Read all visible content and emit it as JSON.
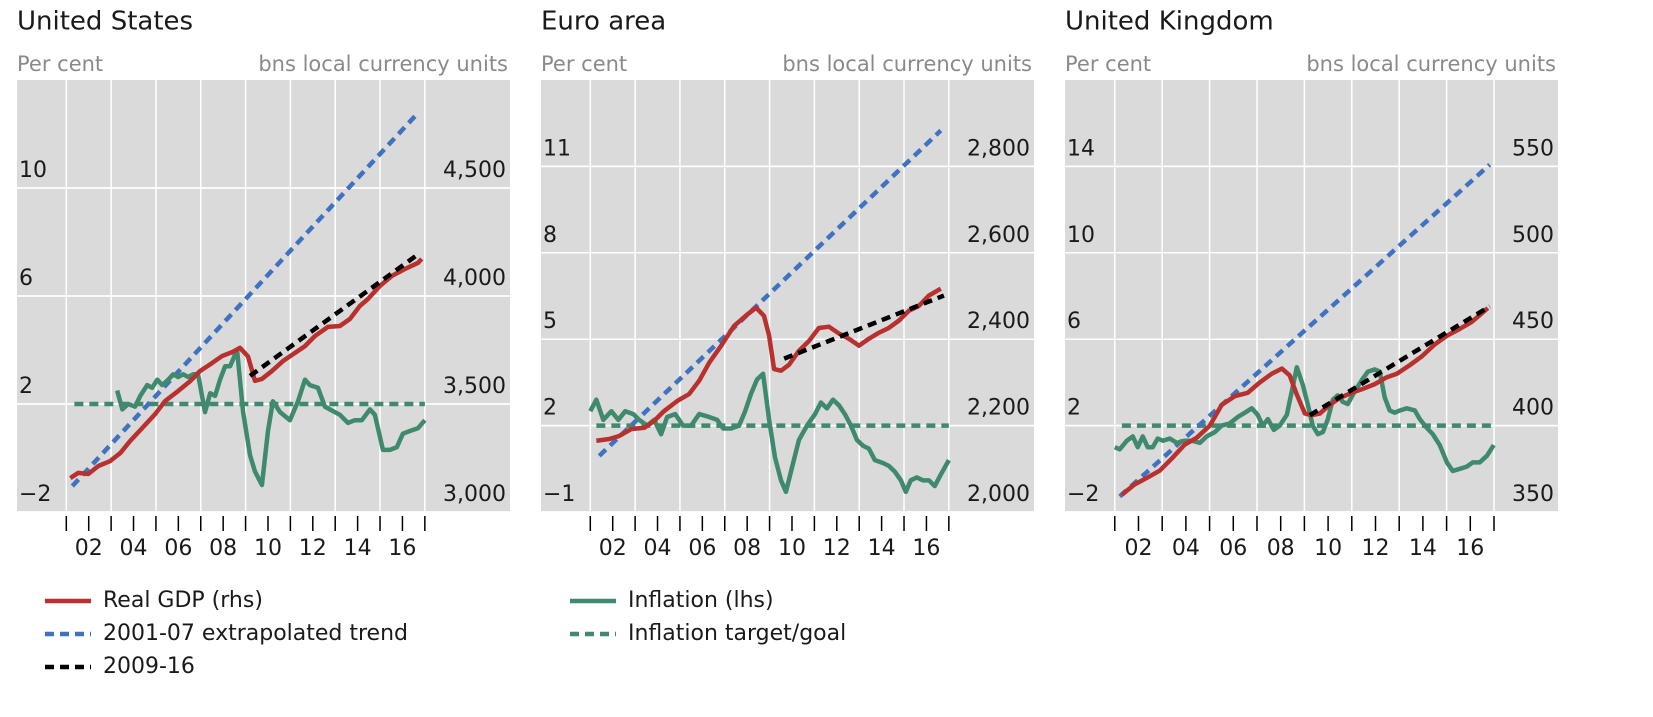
{
  "chart_data": [
    {
      "type": "line",
      "title": "United States",
      "ylabel": "Per cent",
      "y2label": "bns local currency units",
      "xlim": [
        1998.8,
        2020.8
      ],
      "xticks": [
        {
          "value": 2002,
          "label": "02"
        },
        {
          "value": 2004,
          "label": "04"
        },
        {
          "value": 2006,
          "label": "06"
        },
        {
          "value": 2008,
          "label": "08"
        },
        {
          "value": 2010,
          "label": "10"
        },
        {
          "value": 2012,
          "label": "12"
        },
        {
          "value": 2014,
          "label": "14"
        },
        {
          "value": 2016,
          "label": "16"
        }
      ],
      "xminorticks": [
        2001,
        2002,
        2003,
        2004,
        2005,
        2006,
        2007,
        2008,
        2009,
        2010,
        2011,
        2012,
        2013,
        2014,
        2015,
        2016,
        2017
      ],
      "ylim": [
        -2,
        14
      ],
      "yticks": [
        {
          "value": -2,
          "label": "−2"
        },
        2,
        6,
        10
      ],
      "y2lim": [
        3000,
        5000
      ],
      "y2ticks": [
        {
          "value": 3000,
          "label": "3,000"
        },
        {
          "value": 3500,
          "label": "3,500"
        },
        {
          "value": 4000,
          "label": "4,000"
        },
        {
          "value": 4500,
          "label": "4,500"
        }
      ],
      "grid": true,
      "series": [
        {
          "name": "Real GDP (rhs)",
          "color": "#b8312f",
          "dash": false,
          "axis": "y2",
          "x": [
            2001.18,
            2001.53,
            2001.98,
            2002.43,
            2002.96,
            2003.41,
            2003.85,
            2004.39,
            2004.97,
            2005.41,
            2005.99,
            2006.53,
            2006.97,
            2007.51,
            2007.95,
            2008.4,
            2008.75,
            2009.11,
            2009.42,
            2009.73,
            2010.18,
            2010.67,
            2011.2,
            2011.65,
            2012.1,
            2012.68,
            2013.21,
            2013.66,
            2014.1,
            2014.46,
            2014.99,
            2015.53,
            2016.11,
            2016.69,
            2016.86
          ],
          "values": [
            3157,
            3181,
            3176,
            3213,
            3236,
            3273,
            3329,
            3389,
            3454,
            3514,
            3560,
            3606,
            3653,
            3690,
            3722,
            3740,
            3760,
            3720,
            3607,
            3616,
            3653,
            3699,
            3736,
            3768,
            3815,
            3857,
            3861,
            3894,
            3954,
            3986,
            4046,
            4093,
            4125,
            4153,
            4172
          ]
        },
        {
          "name": "2001-07 extrapolated trend",
          "color": "#3f72c0",
          "dash": true,
          "axis": "y2",
          "x": [
            2001.27,
            2016.69
          ],
          "values": [
            3120,
            4847
          ]
        },
        {
          "name": "2009-16",
          "color": "#000000",
          "dash": true,
          "axis": "y2",
          "x": [
            2009.2,
            2016.78
          ],
          "values": [
            3630,
            4199
          ]
        },
        {
          "name": "Inflation (lhs)",
          "color": "#3f8a6c",
          "dash": false,
          "axis": "y",
          "x": [
            2003.27,
            2003.5,
            2003.76,
            2004.07,
            2004.3,
            2004.61,
            2004.83,
            2005.06,
            2005.28,
            2005.55,
            2005.77,
            2005.99,
            2006.21,
            2006.44,
            2006.66,
            2006.88,
            2007.19,
            2007.42,
            2007.64,
            2007.86,
            2008.09,
            2008.31,
            2008.62,
            2008.89,
            2009.2,
            2009.42,
            2009.73,
            2010.0,
            2010.22,
            2010.54,
            2010.98,
            2011.34,
            2011.65,
            2011.87,
            2012.23,
            2012.54,
            2012.76,
            2013.21,
            2013.57,
            2013.88,
            2014.19,
            2014.55,
            2014.77,
            2015.13,
            2015.44,
            2015.75,
            2016.02,
            2016.33,
            2016.69,
            2017.0
          ],
          "values": [
            2.5,
            1.8,
            2.0,
            1.9,
            2.3,
            2.7,
            2.6,
            2.9,
            2.7,
            2.9,
            3.1,
            3.0,
            3.1,
            3.0,
            3.1,
            3.1,
            1.7,
            2.4,
            2.3,
            2.9,
            3.4,
            3.4,
            4.0,
            1.7,
            0.1,
            -0.5,
            -1.0,
            1.0,
            2.1,
            1.7,
            1.4,
            2.1,
            2.9,
            2.7,
            2.6,
            1.9,
            1.8,
            1.6,
            1.3,
            1.4,
            1.4,
            1.8,
            1.6,
            0.3,
            0.3,
            0.4,
            0.9,
            1.0,
            1.1,
            1.4
          ]
        },
        {
          "name": "Inflation target/goal",
          "color": "#3f8a6c",
          "dash": true,
          "axis": "y",
          "x": [
            2001.36,
            2017.0
          ],
          "values": [
            2,
            2
          ]
        }
      ]
    },
    {
      "type": "line",
      "title": "Euro area",
      "ylabel": "Per cent",
      "y2label": "bns local currency units",
      "xlim": [
        1998.8,
        2020.8
      ],
      "xticks": [
        {
          "value": 2002,
          "label": "02"
        },
        {
          "value": 2004,
          "label": "04"
        },
        {
          "value": 2006,
          "label": "06"
        },
        {
          "value": 2008,
          "label": "08"
        },
        {
          "value": 2010,
          "label": "10"
        },
        {
          "value": 2012,
          "label": "12"
        },
        {
          "value": 2014,
          "label": "14"
        },
        {
          "value": 2016,
          "label": "16"
        }
      ],
      "xminorticks": [
        2001,
        2002,
        2003,
        2004,
        2005,
        2006,
        2007,
        2008,
        2009,
        2010,
        2011,
        2012,
        2013,
        2014,
        2015,
        2016,
        2017
      ],
      "ylim": [
        -1,
        14
      ],
      "yticks": [
        {
          "value": -1,
          "label": "−1"
        },
        2,
        5,
        8,
        11
      ],
      "y2lim": [
        2000,
        3000
      ],
      "y2ticks": [
        {
          "value": 2000,
          "label": "2,000"
        },
        {
          "value": 2200,
          "label": "2,200"
        },
        {
          "value": 2400,
          "label": "2,400"
        },
        {
          "value": 2600,
          "label": "2,600"
        },
        {
          "value": 2800,
          "label": "2,800"
        }
      ],
      "grid": true,
      "series": [
        {
          "color": "#b8312f",
          "dash": false,
          "axis": "y2",
          "x": [
            2001.27,
            2001.85,
            2002.29,
            2002.83,
            2003.41,
            2003.85,
            2004.3,
            2004.88,
            2005.41,
            2005.86,
            2006.3,
            2006.84,
            2007.42,
            2008.0,
            2008.4,
            2008.75,
            2008.98,
            2009.2,
            2009.51,
            2009.87,
            2010.31,
            2010.76,
            2011.2,
            2011.65,
            2012.1,
            2012.54,
            2012.99,
            2013.43,
            2013.88,
            2014.32,
            2014.77,
            2015.22,
            2015.66,
            2016.11,
            2016.64
          ],
          "values": [
            2165,
            2169,
            2176,
            2192,
            2195,
            2211,
            2234,
            2257,
            2273,
            2304,
            2345,
            2385,
            2431,
            2457,
            2473,
            2454,
            2408,
            2331,
            2327,
            2341,
            2373,
            2396,
            2426,
            2429,
            2413,
            2401,
            2385,
            2401,
            2415,
            2426,
            2443,
            2466,
            2477,
            2501,
            2517
          ]
        },
        {
          "color": "#3f72c0",
          "dash": true,
          "axis": "y2",
          "x": [
            2001.4,
            2016.64
          ],
          "values": [
            2130,
            2883
          ]
        },
        {
          "color": "#000000",
          "dash": true,
          "axis": "y2",
          "x": [
            2009.65,
            2016.78
          ],
          "values": [
            2355,
            2501
          ]
        },
        {
          "color": "#3f8a6c",
          "dash": false,
          "axis": "y",
          "x": [
            2001.0,
            2001.27,
            2001.58,
            2001.94,
            2002.25,
            2002.56,
            2002.92,
            2003.18,
            2003.54,
            2003.85,
            2004.16,
            2004.43,
            2004.79,
            2005.14,
            2005.5,
            2005.86,
            2006.3,
            2006.66,
            2006.93,
            2007.28,
            2007.64,
            2007.91,
            2008.17,
            2008.44,
            2008.71,
            2008.98,
            2009.24,
            2009.51,
            2009.73,
            2010.05,
            2010.31,
            2010.67,
            2011.03,
            2011.29,
            2011.56,
            2011.83,
            2012.1,
            2012.36,
            2012.63,
            2012.9,
            2013.17,
            2013.43,
            2013.7,
            2014.06,
            2014.32,
            2014.59,
            2014.86,
            2015.08,
            2015.3,
            2015.57,
            2015.84,
            2016.11,
            2016.37,
            2016.64,
            2017.0
          ],
          "values": [
            2.5,
            2.9,
            2.2,
            2.5,
            2.2,
            2.5,
            2.4,
            2.2,
            2.0,
            2.2,
            1.7,
            2.3,
            2.4,
            2.0,
            2.0,
            2.4,
            2.3,
            2.2,
            1.9,
            1.9,
            2.0,
            2.5,
            3.1,
            3.6,
            3.8,
            2.2,
            0.9,
            0.1,
            -0.3,
            0.7,
            1.5,
            2.0,
            2.4,
            2.8,
            2.6,
            2.9,
            2.7,
            2.4,
            2.0,
            1.5,
            1.3,
            1.2,
            0.8,
            0.7,
            0.6,
            0.4,
            0.1,
            -0.3,
            0.1,
            0.2,
            0.1,
            0.1,
            -0.1,
            0.3,
            0.8
          ]
        },
        {
          "color": "#3f8a6c",
          "dash": true,
          "axis": "y",
          "x": [
            2001.27,
            2017.0
          ],
          "values": [
            2,
            2
          ]
        }
      ]
    },
    {
      "type": "line",
      "title": "United Kingdom",
      "ylabel": "Per cent",
      "y2label": "bns local currency units",
      "xlim": [
        1998.9,
        2019.7
      ],
      "xticks": [
        {
          "value": 2002,
          "label": "02"
        },
        {
          "value": 2004,
          "label": "04"
        },
        {
          "value": 2006,
          "label": "06"
        },
        {
          "value": 2008,
          "label": "08"
        },
        {
          "value": 2010,
          "label": "10"
        },
        {
          "value": 2012,
          "label": "12"
        },
        {
          "value": 2014,
          "label": "14"
        },
        {
          "value": 2016,
          "label": "16"
        }
      ],
      "xminorticks": [
        2001,
        2002,
        2003,
        2004,
        2005,
        2006,
        2007,
        2008,
        2009,
        2010,
        2011,
        2012,
        2013,
        2014,
        2015,
        2016,
        2017
      ],
      "ylim": [
        -2,
        18
      ],
      "yticks": [
        {
          "value": -2,
          "label": "−2"
        },
        2,
        6,
        10,
        14
      ],
      "y2lim": [
        350,
        600
      ],
      "y2ticks": [
        350,
        400,
        450,
        500,
        550
      ],
      "grid": true,
      "series": [
        {
          "color": "#b8312f",
          "dash": false,
          "axis": "y2",
          "x": [
            2001.3,
            2001.84,
            2002.39,
            2002.9,
            2003.41,
            2003.95,
            2004.46,
            2005.01,
            2005.51,
            2006.06,
            2006.61,
            2007.12,
            2007.62,
            2008.05,
            2008.38,
            2008.68,
            2009.02,
            2009.31,
            2009.65,
            2010.07,
            2010.49,
            2011.0,
            2011.42,
            2011.97,
            2012.48,
            2012.9,
            2013.45,
            2013.95,
            2014.5,
            2015.01,
            2015.56,
            2016.06,
            2016.4,
            2016.74
          ],
          "values": [
            360,
            366,
            370,
            374,
            381,
            389,
            393,
            400,
            412,
            417,
            419,
            425,
            430,
            433,
            429,
            418,
            407,
            406,
            407,
            412,
            416,
            419,
            421,
            424,
            428,
            430,
            435,
            440,
            447,
            452,
            456,
            460,
            464,
            468
          ]
        },
        {
          "color": "#3f72c0",
          "dash": true,
          "axis": "y2",
          "x": [
            2001.21,
            2016.82
          ],
          "values": [
            359,
            551
          ]
        },
        {
          "color": "#000000",
          "dash": true,
          "axis": "y2",
          "x": [
            2009.23,
            2016.82
          ],
          "values": [
            406,
            469
          ]
        },
        {
          "color": "#3f8a6c",
          "dash": false,
          "axis": "y",
          "x": [
            2001.0,
            2001.21,
            2001.51,
            2001.76,
            2001.97,
            2002.18,
            2002.39,
            2002.6,
            2002.81,
            2003.03,
            2003.32,
            2003.62,
            2003.95,
            2004.25,
            2004.59,
            2004.88,
            2005.22,
            2005.51,
            2005.85,
            2006.19,
            2006.49,
            2006.78,
            2007.03,
            2007.24,
            2007.46,
            2007.71,
            2007.96,
            2008.26,
            2008.47,
            2008.68,
            2008.93,
            2009.14,
            2009.35,
            2009.57,
            2009.78,
            2009.99,
            2010.2,
            2010.41,
            2010.62,
            2010.83,
            2011.13,
            2011.42,
            2011.68,
            2011.97,
            2012.18,
            2012.39,
            2012.6,
            2012.81,
            2013.03,
            2013.32,
            2013.66,
            2013.87,
            2014.16,
            2014.42,
            2014.71,
            2015.01,
            2015.26,
            2015.56,
            2015.85,
            2016.11,
            2016.4,
            2016.7,
            2016.99
          ],
          "values": [
            1.0,
            0.9,
            1.3,
            1.5,
            1.0,
            1.5,
            1.0,
            1.0,
            1.4,
            1.3,
            1.4,
            1.2,
            1.3,
            1.3,
            1.2,
            1.5,
            1.7,
            2.0,
            2.1,
            2.4,
            2.6,
            2.8,
            2.5,
            2.0,
            2.3,
            1.8,
            2.0,
            2.5,
            3.6,
            4.7,
            3.9,
            3.0,
            2.0,
            1.6,
            1.7,
            2.3,
            3.2,
            3.4,
            3.1,
            3.0,
            3.6,
            4.1,
            4.5,
            4.6,
            4.5,
            3.3,
            2.7,
            2.6,
            2.7,
            2.8,
            2.7,
            2.3,
            1.9,
            1.6,
            1.1,
            0.3,
            -0.1,
            0.0,
            0.1,
            0.3,
            0.3,
            0.6,
            1.1
          ]
        },
        {
          "color": "#3f8a6c",
          "dash": true,
          "axis": "y",
          "x": [
            2001.3,
            2017.0
          ],
          "values": [
            2,
            2
          ]
        }
      ]
    }
  ]
}
